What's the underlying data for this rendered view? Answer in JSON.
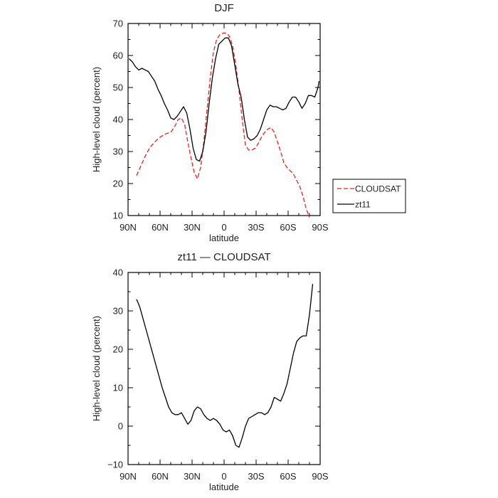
{
  "chart_data": [
    {
      "type": "line",
      "title": "DJF",
      "xlabel": "latitude",
      "ylabel": "High-level cloud (percent)",
      "xlim": [
        -90,
        90
      ],
      "ylim": [
        10,
        70
      ],
      "xticks": [
        -90,
        -60,
        -30,
        0,
        30,
        60,
        90
      ],
      "xtick_labels": [
        "90N",
        "60N",
        "30N",
        "0",
        "30S",
        "60S",
        "90S"
      ],
      "yticks": [
        10,
        20,
        30,
        40,
        50,
        60,
        70
      ],
      "ytick_labels": [
        "10",
        "20",
        "30",
        "40",
        "50",
        "60",
        "70"
      ],
      "legend": {
        "placement": "right"
      },
      "series": [
        {
          "name": "CLOUDSAT",
          "color": "#e8231f",
          "dash": "dashed",
          "x": [
            -82,
            -78,
            -74,
            -70,
            -65,
            -60,
            -55,
            -50,
            -46,
            -43,
            -40,
            -37,
            -34,
            -31,
            -28,
            -25,
            -22,
            -19,
            -16,
            -13,
            -10,
            -7,
            -4,
            -1,
            2,
            5,
            8,
            11,
            14,
            17,
            20,
            23,
            26,
            29,
            32,
            35,
            38,
            41,
            44,
            47,
            50,
            53,
            56,
            59,
            62,
            65,
            68,
            71,
            74,
            77,
            80
          ],
          "y": [
            22.5,
            25.5,
            28.5,
            31,
            33,
            34.5,
            35.5,
            36,
            38,
            40,
            40.5,
            38.5,
            33,
            28,
            23.5,
            21.5,
            25,
            33,
            43,
            53,
            61,
            65,
            66.5,
            67,
            67,
            66,
            63,
            57,
            49,
            40,
            32,
            30.5,
            30.5,
            31,
            32.5,
            34.5,
            36,
            37,
            37.5,
            36,
            33,
            30,
            26.5,
            25,
            24,
            23,
            21,
            19,
            16,
            12,
            9.5
          ]
        },
        {
          "name": "zt11",
          "color": "#000000",
          "dash": "solid",
          "x": [
            -89,
            -86,
            -83,
            -80,
            -77,
            -74,
            -71,
            -68,
            -65,
            -62,
            -59,
            -56,
            -53,
            -50,
            -47,
            -44,
            -41,
            -38,
            -35,
            -32,
            -29,
            -26,
            -23,
            -20,
            -17,
            -14,
            -11,
            -8,
            -5,
            -2,
            1,
            4,
            7,
            10,
            13,
            16,
            19,
            22,
            25,
            28,
            31,
            34,
            37,
            40,
            43,
            46,
            49,
            52,
            55,
            58,
            61,
            64,
            67,
            70,
            73,
            76,
            79,
            82,
            85,
            88,
            89
          ],
          "y": [
            59,
            58,
            56.5,
            55.5,
            56,
            55.5,
            55,
            53.5,
            52,
            49.5,
            47.5,
            45,
            43,
            40.5,
            40,
            41,
            42.5,
            44,
            42,
            37,
            31,
            27.5,
            27,
            30,
            36,
            45,
            53,
            59,
            63.5,
            64.5,
            65.5,
            65.5,
            63,
            57,
            51,
            47,
            40,
            34.5,
            33.5,
            34,
            35,
            37,
            40,
            43,
            44.5,
            44,
            44,
            43.5,
            43,
            43.5,
            45.5,
            47,
            47,
            45.5,
            43.5,
            45,
            47.5,
            47.5,
            47,
            50,
            52
          ]
        }
      ]
    },
    {
      "type": "line",
      "title": "zt11 — CLOUDSAT",
      "xlabel": "latitude",
      "ylabel": "High-level cloud (percent)",
      "xlim": [
        -90,
        90
      ],
      "ylim": [
        -10,
        40
      ],
      "xticks": [
        -90,
        -60,
        -30,
        0,
        30,
        60,
        90
      ],
      "xtick_labels": [
        "90N",
        "60N",
        "30N",
        "0",
        "30S",
        "60S",
        "90S"
      ],
      "yticks": [
        -10,
        0,
        10,
        20,
        30,
        40
      ],
      "ytick_labels": [
        "−10",
        "0",
        "10",
        "20",
        "30",
        "40"
      ],
      "series": [
        {
          "color": "#000000",
          "dash": "solid",
          "x": [
            -82,
            -79,
            -76,
            -73,
            -70,
            -67,
            -64,
            -61,
            -58,
            -55,
            -52,
            -49,
            -46,
            -43,
            -40,
            -37,
            -34,
            -31,
            -28,
            -25,
            -22,
            -19,
            -16,
            -13,
            -10,
            -7,
            -4,
            -1,
            2,
            5,
            8,
            11,
            14,
            17,
            20,
            23,
            26,
            29,
            32,
            35,
            38,
            41,
            44,
            47,
            50,
            53,
            56,
            59,
            62,
            65,
            68,
            71,
            74,
            77,
            80,
            83
          ],
          "y": [
            33,
            31,
            28,
            25,
            22,
            19,
            16,
            13,
            10,
            7.5,
            5,
            3.5,
            3,
            3,
            3.5,
            2,
            0.5,
            1.5,
            4,
            5,
            4.5,
            3,
            2,
            1.5,
            2,
            1.5,
            0.5,
            -1,
            -1.5,
            -1,
            -2.5,
            -5,
            -5.5,
            -3,
            0,
            2,
            2.5,
            3,
            3.5,
            3.5,
            3,
            3.5,
            5,
            7.5,
            7,
            6.5,
            8.5,
            11,
            15,
            19,
            22,
            23,
            23.5,
            23.5,
            29,
            37
          ]
        }
      ]
    }
  ]
}
